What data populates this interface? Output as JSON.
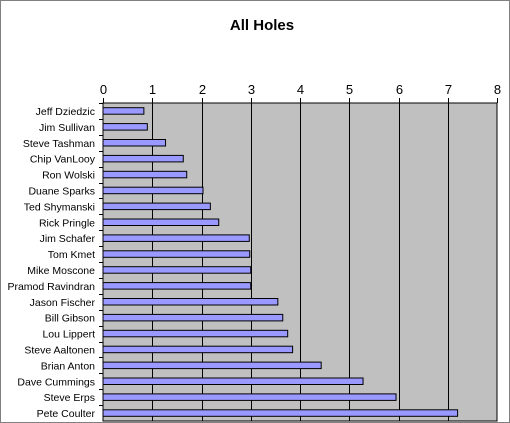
{
  "chart_data": {
    "type": "bar",
    "orientation": "horizontal",
    "title": "All Holes",
    "xlabel": "",
    "ylabel": "",
    "xlim": [
      0,
      8
    ],
    "x_ticks": [
      "0",
      "1",
      "2",
      "3",
      "4",
      "5",
      "6",
      "7",
      "8"
    ],
    "x_axis_position": "top",
    "grid": true,
    "legend": "none",
    "categories": [
      "Jeff Dziedzic",
      "Jim Sullivan",
      "Steve Tashman",
      "Chip VanLooy",
      "Ron Wolski",
      "Duane Sparks",
      "Ted Shymanski",
      "Rick Pringle",
      "Jim Schafer",
      "Tom Kmet",
      "Mike Moscone",
      "Pramod Ravindran",
      "Jason Fischer",
      "Bill Gibson",
      "Lou Lippert",
      "Steve Aaltonen",
      "Brian Anton",
      "Dave Cummings",
      "Steve Erps",
      "Pete Coulter"
    ],
    "values": [
      0.83,
      0.9,
      1.27,
      1.63,
      1.7,
      2.03,
      2.18,
      2.35,
      2.97,
      2.98,
      3.0,
      3.0,
      3.55,
      3.65,
      3.75,
      3.85,
      4.43,
      5.28,
      5.95,
      7.2
    ],
    "colors": {
      "bar_fill": "#9999ff",
      "bar_stroke": "#000000",
      "plot_bg": "#c0c0c0",
      "grid": "#000000",
      "frame": "#808080"
    }
  }
}
